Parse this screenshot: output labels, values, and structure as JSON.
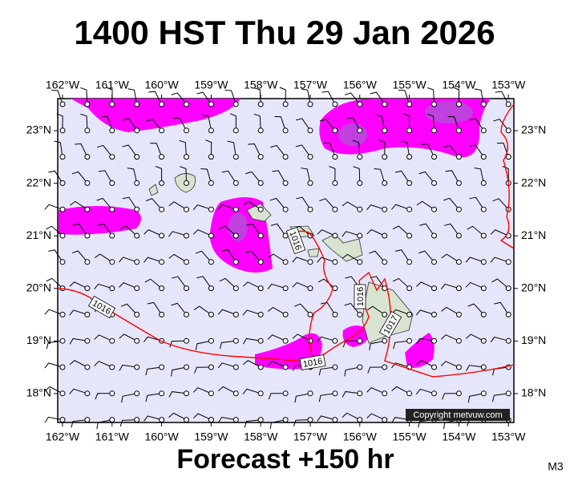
{
  "title": "1400 HST Thu 29 Jan 2026",
  "footer": "Forecast +150 hr",
  "model": "M3",
  "copyright": "Copyright metvuw.com",
  "lon_labels": [
    "162°W",
    "161°W",
    "160°W",
    "159°W",
    "158°W",
    "157°W",
    "156°W",
    "155°W",
    "154°W",
    "153°W"
  ],
  "lat_labels": [
    "23°N",
    "22°N",
    "21°N",
    "20°N",
    "19°N",
    "18°N"
  ],
  "isobar_labels": [
    "1016",
    "1016",
    "1016",
    "1016",
    "1017"
  ]
}
